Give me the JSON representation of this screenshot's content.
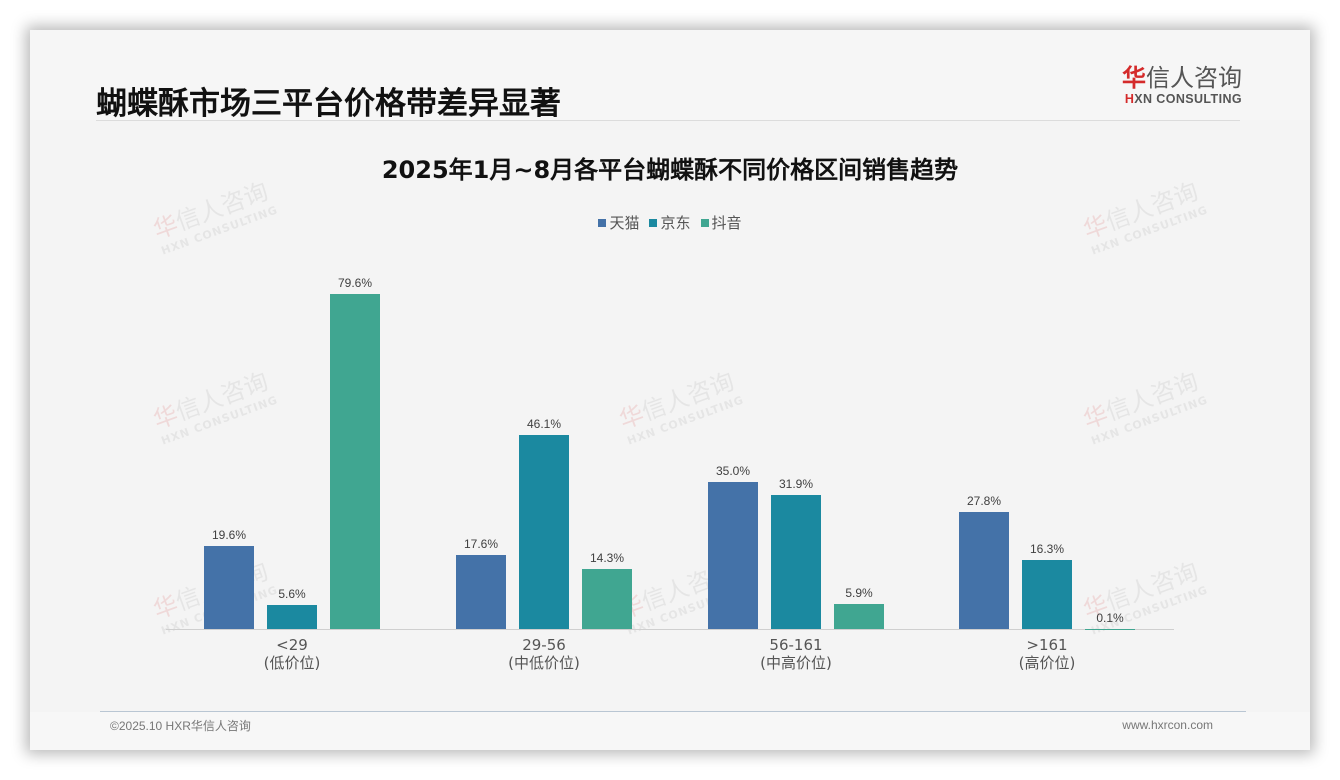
{
  "page": {
    "title": "蝴蝶酥市场三平台价格带差异显著",
    "logo": {
      "cn_first": "华",
      "cn_rest": "信人咨询",
      "en_first": "H",
      "en_rest": "XN CONSULTING"
    },
    "watermark": {
      "cn_first": "华",
      "cn_rest": "信人咨询",
      "en": "HXN CONSULTING"
    }
  },
  "footer": {
    "copyright": "©2025.10 HXR华信人咨询",
    "website": "www.hxrcon.com"
  },
  "chart_data": {
    "type": "bar",
    "title": "2025年1月~8月各平台蝴蝶酥不同价格区间销售趋势",
    "xlabel": "",
    "ylabel": "",
    "ylim": [
      0,
      88
    ],
    "grid": false,
    "legend_position": "top",
    "categories": [
      "<29",
      "29-56",
      "56-161",
      ">161"
    ],
    "category_sublabels": [
      "(低价位)",
      "(中低价位)",
      "(中高价位)",
      "(高价位)"
    ],
    "series": [
      {
        "name": "天猫",
        "color": "#4472a8",
        "values": [
          19.6,
          17.6,
          35.0,
          27.8
        ],
        "labels": [
          "19.6%",
          "17.6%",
          "35.0%",
          "27.8%"
        ]
      },
      {
        "name": "京东",
        "color": "#1b89a0",
        "values": [
          5.6,
          46.1,
          31.9,
          16.3
        ],
        "labels": [
          "5.6%",
          "46.1%",
          "31.9%",
          "16.3%"
        ]
      },
      {
        "name": "抖音",
        "color": "#40a691",
        "values": [
          79.6,
          14.3,
          5.9,
          0.1
        ],
        "labels": [
          "79.6%",
          "14.3%",
          "5.9%",
          "0.1%"
        ]
      }
    ],
    "value_format": "percent_1dp"
  }
}
